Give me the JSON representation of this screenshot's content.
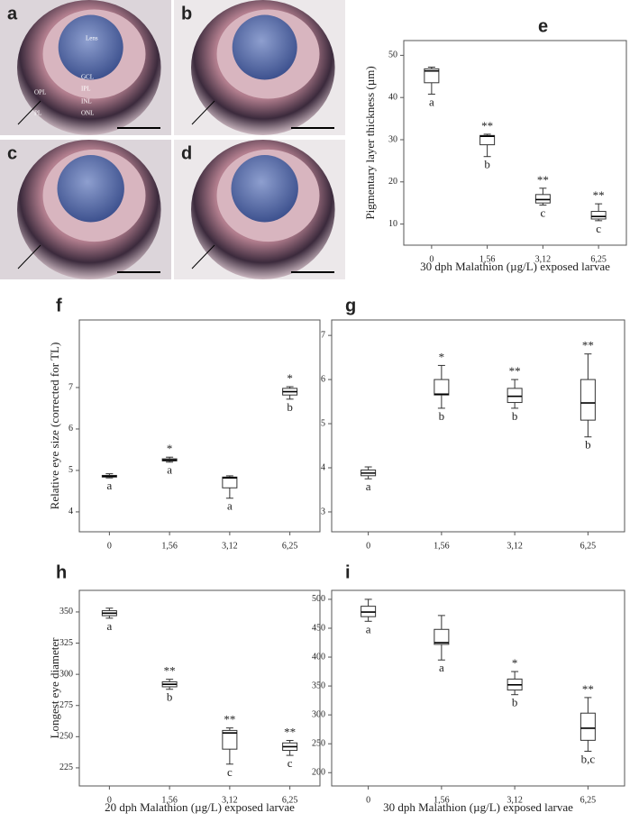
{
  "micrographs": [
    {
      "label": "a",
      "annotations": [
        "Lens",
        "GCL",
        "IPL",
        "OPL",
        "INL",
        "ONL",
        "PL"
      ]
    },
    {
      "label": "b"
    },
    {
      "label": "c"
    },
    {
      "label": "d"
    }
  ],
  "chart_data": [
    {
      "type": "box",
      "panel": "e",
      "ylabel": "Pigmentary layer thickness  (µm)",
      "xlabel": "30 dph Malathion (µg/L) exposed larvae",
      "categories": [
        "0",
        "1,56",
        "3,12",
        "6,25"
      ],
      "low": [
        40.8,
        26,
        14.5,
        10.8
      ],
      "q1": [
        43.5,
        28.8,
        15,
        11.2
      ],
      "median": [
        46.3,
        30.8,
        15.8,
        11.8
      ],
      "q3": [
        46.8,
        31,
        17,
        13
      ],
      "high": [
        47.2,
        31.3,
        18.5,
        14.8
      ],
      "stars": [
        null,
        "**",
        "**",
        "**"
      ],
      "groups": [
        "a",
        "b",
        "c",
        "c"
      ],
      "ylim": [
        5,
        53.5
      ],
      "yticks": [
        10,
        20,
        30,
        40,
        50
      ]
    },
    {
      "type": "box",
      "panel": "f",
      "ylabel": "Relative eye size (corrected for TL)",
      "categories": [
        "0",
        "1,56",
        "3,12",
        "6,25"
      ],
      "low": [
        4.82,
        5.2,
        4.33,
        6.72
      ],
      "q1": [
        4.84,
        5.23,
        4.58,
        6.82
      ],
      "median": [
        4.86,
        5.25,
        4.82,
        6.9
      ],
      "q3": [
        4.88,
        5.28,
        4.84,
        6.98
      ],
      "high": [
        4.92,
        5.32,
        4.87,
        7.02
      ],
      "stars": [
        null,
        "*",
        null,
        "*"
      ],
      "groups": [
        "a",
        "a",
        "a",
        "b"
      ],
      "ylim": [
        3.52,
        8.63
      ],
      "yticks": [
        4,
        5,
        6,
        7
      ]
    },
    {
      "type": "box",
      "panel": "g",
      "categories": [
        "0",
        "1,56",
        "3,12",
        "6,25"
      ],
      "low": [
        3.75,
        5.35,
        5.35,
        4.7
      ],
      "q1": [
        3.82,
        5.65,
        5.48,
        5.08
      ],
      "median": [
        3.88,
        5.67,
        5.62,
        5.47
      ],
      "q3": [
        3.95,
        6.0,
        5.8,
        6.0
      ],
      "high": [
        4.02,
        6.32,
        6.0,
        6.58
      ],
      "stars": [
        null,
        "*",
        "**",
        "**"
      ],
      "groups": [
        "a",
        "b",
        "b",
        "b"
      ],
      "ylim": [
        2.55,
        7.35
      ],
      "yticks": [
        3,
        4,
        5,
        6,
        7
      ]
    },
    {
      "type": "box",
      "panel": "h",
      "ylabel": "Longest eye diameter",
      "xlabel": "20 dph Malathion (µg/L) exposed larvae",
      "categories": [
        "0",
        "1,56",
        "3,12",
        "6,25"
      ],
      "low": [
        345,
        288,
        228,
        235
      ],
      "q1": [
        347,
        290,
        240,
        239
      ],
      "median": [
        349,
        292,
        253,
        242
      ],
      "q3": [
        351,
        294,
        255,
        245
      ],
      "high": [
        353,
        296,
        257,
        247
      ],
      "stars": [
        null,
        "**",
        "**",
        "**"
      ],
      "groups": [
        "a",
        "b",
        "c",
        "c"
      ],
      "ylim": [
        210.5,
        367.3
      ],
      "yticks": [
        225,
        250,
        275,
        300,
        325,
        350
      ]
    },
    {
      "type": "box",
      "panel": "i",
      "xlabel": "30 dph Malathion (µg/L) exposed larvae",
      "categories": [
        "0",
        "1,56",
        "3,12",
        "6,25"
      ],
      "low": [
        462,
        395,
        335,
        237
      ],
      "q1": [
        470,
        422,
        343,
        256
      ],
      "median": [
        478,
        425,
        352,
        277
      ],
      "q3": [
        488,
        448,
        362,
        303
      ],
      "high": [
        500,
        472,
        375,
        330
      ],
      "stars": [
        null,
        null,
        "*",
        "**"
      ],
      "groups": [
        "a",
        "a",
        "b",
        "b,c"
      ],
      "ylim": [
        177,
        515.5
      ],
      "yticks": [
        200,
        250,
        300,
        350,
        400,
        450,
        500
      ]
    }
  ]
}
